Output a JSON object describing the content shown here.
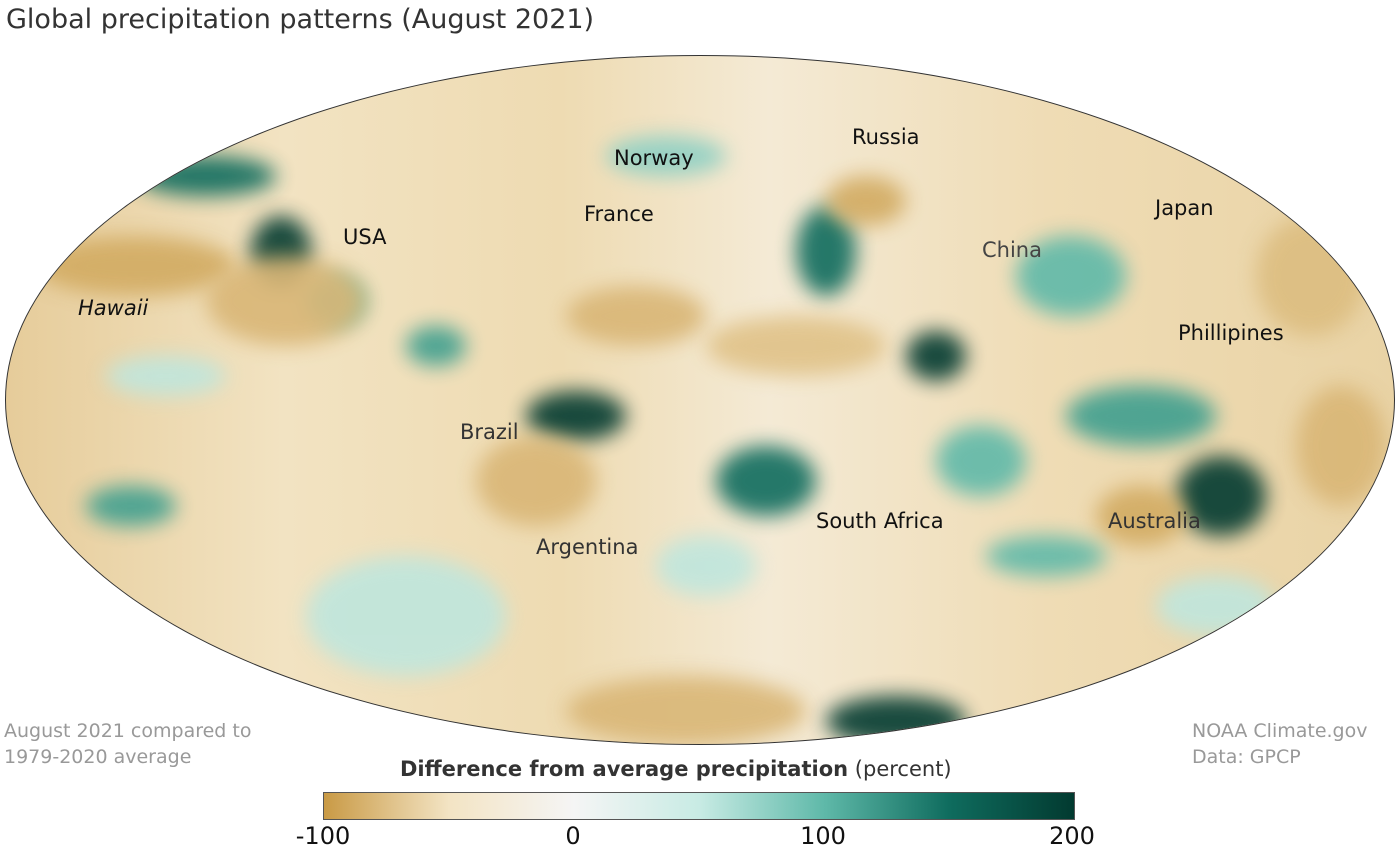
{
  "title": "Global precipitation patterns (August 2021)",
  "labels": {
    "norway": "Norway",
    "russia": "Russia",
    "france": "France",
    "usa": "USA",
    "japan": "Japan",
    "china": "China",
    "hawaii": "Hawaii",
    "phillipines": "Phillipines",
    "brazil": "Brazil",
    "south_africa": "South Africa",
    "australia": "Australia",
    "argentina": "Argentina"
  },
  "legend": {
    "title_bold": "Difference from average precipitation",
    "title_unit": "(percent)",
    "ticks": [
      "-100",
      "0",
      "100",
      "200"
    ],
    "range": [
      -100,
      200
    ],
    "colors": [
      "#c99a45",
      "#f3e4c4",
      "#f5f5f5",
      "#c8ebe4",
      "#5fb9a9",
      "#0f6c5e",
      "#023a30"
    ]
  },
  "note_left": [
    "August 2021 compared to",
    "1979-2020 average"
  ],
  "note_right": [
    "NOAA Climate.gov",
    "Data: GPCP"
  ]
}
